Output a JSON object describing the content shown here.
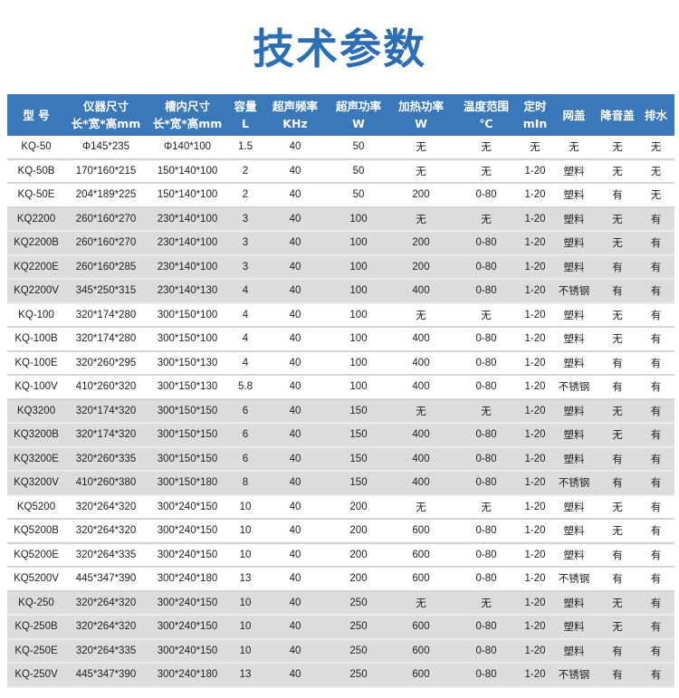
{
  "title": "技术参数",
  "header": [
    [
      "型 号",
      ""
    ],
    [
      "仪器尺寸",
      "长*宽*高mm"
    ],
    [
      "槽内尺寸",
      "长*宽*高mm"
    ],
    [
      "容量",
      "L"
    ],
    [
      "超声频率",
      "KHz"
    ],
    [
      "超声功率",
      "W"
    ],
    [
      "加热功率",
      "W"
    ],
    [
      "温度范围",
      "℃"
    ],
    [
      "定时",
      "mIn"
    ],
    [
      "网盖",
      ""
    ],
    [
      "降音盖",
      ""
    ],
    [
      "排水",
      ""
    ]
  ],
  "rows": [
    {
      "shaded": false,
      "cells": [
        "KQ-50",
        "Φ145*235",
        "Φ140*100",
        "1.5",
        "40",
        "50",
        "无",
        "无",
        "无",
        "无",
        "无",
        "无"
      ]
    },
    {
      "shaded": false,
      "cells": [
        "KQ-50B",
        "170*160*215",
        "150*140*100",
        "2",
        "40",
        "50",
        "无",
        "无",
        "1-20",
        "塑料",
        "无",
        "无"
      ]
    },
    {
      "shaded": false,
      "cells": [
        "KQ-50E",
        "204*189*225",
        "150*140*100",
        "2",
        "40",
        "50",
        "200",
        "0-80",
        "1-20",
        "塑料",
        "有",
        "无"
      ]
    },
    {
      "shaded": true,
      "cells": [
        "KQ2200",
        "260*160*270",
        "230*140*100",
        "3",
        "40",
        "100",
        "无",
        "无",
        "1-20",
        "塑料",
        "无",
        "有"
      ]
    },
    {
      "shaded": true,
      "cells": [
        "KQ2200B",
        "260*160*270",
        "230*140*100",
        "3",
        "40",
        "100",
        "200",
        "0-80",
        "1-20",
        "塑料",
        "无",
        "有"
      ]
    },
    {
      "shaded": true,
      "cells": [
        "KQ2200E",
        "260*160*285",
        "230*140*100",
        "3",
        "40",
        "100",
        "200",
        "0-80",
        "1-20",
        "塑料",
        "有",
        "有"
      ]
    },
    {
      "shaded": true,
      "cells": [
        "KQ2200V",
        "345*250*315",
        "230*140*130",
        "4",
        "40",
        "100",
        "400",
        "0-80",
        "1-20",
        "不锈钢",
        "有",
        "有"
      ]
    },
    {
      "shaded": false,
      "cells": [
        "KQ-100",
        "320*174*280",
        "300*150*100",
        "4",
        "40",
        "100",
        "无",
        "无",
        "1-20",
        "塑料",
        "无",
        "有"
      ]
    },
    {
      "shaded": false,
      "cells": [
        "KQ-100B",
        "320*174*280",
        "300*150*100",
        "4",
        "40",
        "100",
        "400",
        "0-80",
        "1-20",
        "塑料",
        "无",
        "有"
      ]
    },
    {
      "shaded": false,
      "cells": [
        "KQ-100E",
        "320*260*295",
        "300*150*130",
        "4",
        "40",
        "100",
        "400",
        "0-80",
        "1-20",
        "塑料",
        "有",
        "有"
      ]
    },
    {
      "shaded": false,
      "cells": [
        "KQ-100V",
        "410*260*320",
        "300*150*130",
        "5.8",
        "40",
        "100",
        "400",
        "0-80",
        "1-20",
        "不锈钢",
        "有",
        "有"
      ]
    },
    {
      "shaded": true,
      "cells": [
        "KQ3200",
        "320*174*320",
        "300*150*150",
        "6",
        "40",
        "150",
        "无",
        "无",
        "1-20",
        "塑料",
        "无",
        "有"
      ]
    },
    {
      "shaded": true,
      "cells": [
        "KQ3200B",
        "320*174*320",
        "300*150*150",
        "6",
        "40",
        "150",
        "400",
        "0-80",
        "1-20",
        "塑料",
        "无",
        "有"
      ]
    },
    {
      "shaded": true,
      "cells": [
        "KQ3200E",
        "320*260*335",
        "300*150*150",
        "6",
        "40",
        "150",
        "400",
        "0-80",
        "1-20",
        "塑料",
        "有",
        "有"
      ]
    },
    {
      "shaded": true,
      "cells": [
        "KQ3200V",
        "410*260*380",
        "300*150*180",
        "8",
        "40",
        "150",
        "400",
        "0-80",
        "1-20",
        "不锈钢",
        "有",
        "有"
      ]
    },
    {
      "shaded": false,
      "cells": [
        "KQ5200",
        "320*264*320",
        "300*240*150",
        "10",
        "40",
        "200",
        "无",
        "无",
        "1-20",
        "塑料",
        "无",
        "有"
      ]
    },
    {
      "shaded": false,
      "cells": [
        "KQ5200B",
        "320*264*320",
        "300*240*150",
        "10",
        "40",
        "200",
        "600",
        "0-80",
        "1-20",
        "塑料",
        "无",
        "有"
      ]
    },
    {
      "shaded": false,
      "cells": [
        "KQ5200E",
        "320*264*335",
        "300*240*150",
        "10",
        "40",
        "200",
        "600",
        "0-80",
        "1-20",
        "塑料",
        "有",
        "有"
      ]
    },
    {
      "shaded": false,
      "cells": [
        "KQ5200V",
        "445*347*390",
        "300*240*180",
        "13",
        "40",
        "200",
        "600",
        "0-80",
        "1-20",
        "不锈钢",
        "有",
        "有"
      ]
    },
    {
      "shaded": true,
      "cells": [
        "KQ-250",
        "320*264*320",
        "300*240*150",
        "10",
        "40",
        "250",
        "无",
        "无",
        "1-20",
        "塑料",
        "无",
        "有"
      ]
    },
    {
      "shaded": true,
      "cells": [
        "KQ-250B",
        "320*264*320",
        "300*240*150",
        "10",
        "40",
        "250",
        "600",
        "0-80",
        "1-20",
        "塑料",
        "无",
        "有"
      ]
    },
    {
      "shaded": true,
      "cells": [
        "KQ-250E",
        "320*264*335",
        "300*240*150",
        "10",
        "40",
        "250",
        "600",
        "0-80",
        "1-20",
        "塑料",
        "有",
        "有"
      ]
    },
    {
      "shaded": true,
      "cells": [
        "KQ-250V",
        "445*347*390",
        "300*240*180",
        "13",
        "40",
        "250",
        "600",
        "0-80",
        "1-20",
        "不锈钢",
        "有",
        "有"
      ]
    }
  ]
}
